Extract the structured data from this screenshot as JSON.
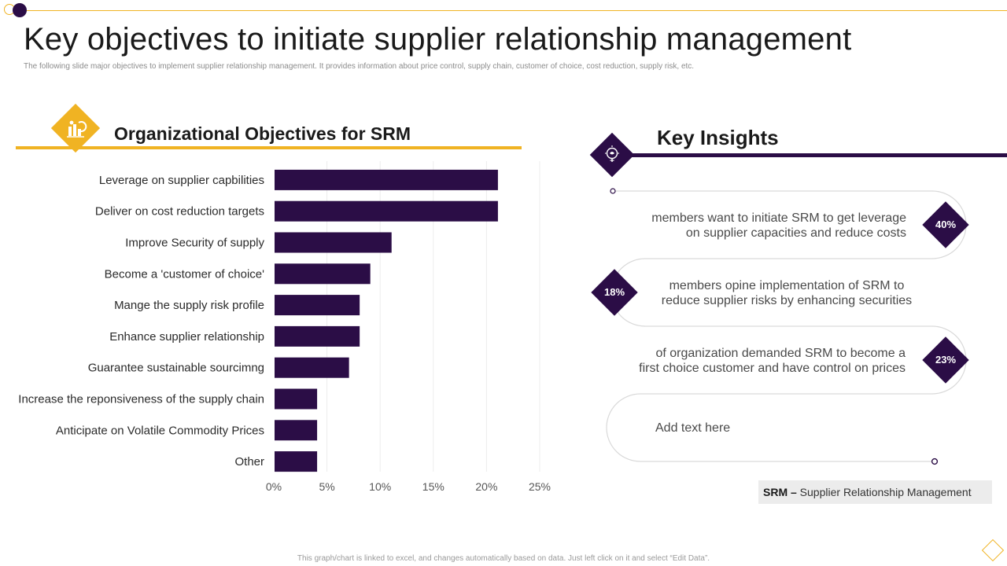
{
  "title": "Key objectives to initiate supplier relationship management",
  "subtitle": "The following slide major  objectives to implement  supplier relationship management.  It provides information about price control, supply chain, customer of choice, cost reduction, supply risk, etc.",
  "objectives_title": "Organizational Objectives for SRM",
  "insights_title": "Key Insights",
  "chart_data": {
    "type": "bar",
    "orientation": "horizontal",
    "categories": [
      "Leverage on supplier capbilities",
      "Deliver on cost reduction targets",
      "Improve Security of supply",
      "Become a 'customer of choice'",
      "Mange the supply risk profile",
      "Enhance supplier relationship",
      "Guarantee sustainable sourcimng",
      "Increase the reponsiveness of the supply chain",
      "Anticipate on Volatile Commodity Prices",
      "Other"
    ],
    "values": [
      21,
      21,
      11,
      9,
      8,
      8,
      7,
      4,
      4,
      4
    ],
    "xlim": [
      0,
      25
    ],
    "xticks": [
      "0%",
      "5%",
      "10%",
      "15%",
      "20%",
      "25%"
    ],
    "xticks_values": [
      0,
      5,
      10,
      15,
      20,
      25
    ],
    "bar_color": "#2b0d46",
    "grid": true,
    "title": "",
    "xlabel": "",
    "ylabel": ""
  },
  "insights": [
    {
      "percent": "40%",
      "line1": "members want to initiate SRM to get leverage",
      "line2": "on supplier capacities and reduce costs"
    },
    {
      "percent": "18%",
      "line1": "members opine implementation of SRM to",
      "line2": "reduce supplier risks by enhancing securities"
    },
    {
      "percent": "23%",
      "line1": "of organization demanded SRM to become a",
      "line2": "first choice customer and have control on prices"
    },
    {
      "percent": "",
      "line1": "Add text here",
      "line2": ""
    }
  ],
  "legend": {
    "abbr": "SRM –",
    "full": " Supplier Relationship Management"
  },
  "footer": "This graph/chart is linked to excel, and changes automatically based on data. Just left click on it and select “Edit Data”.",
  "colors": {
    "accent": "#f0b323",
    "brand": "#2b0d46",
    "text": "#4a4a4a"
  },
  "icons": {
    "objectives": "chart-bars-icon",
    "insights": "lightbulb-brain-icon"
  }
}
